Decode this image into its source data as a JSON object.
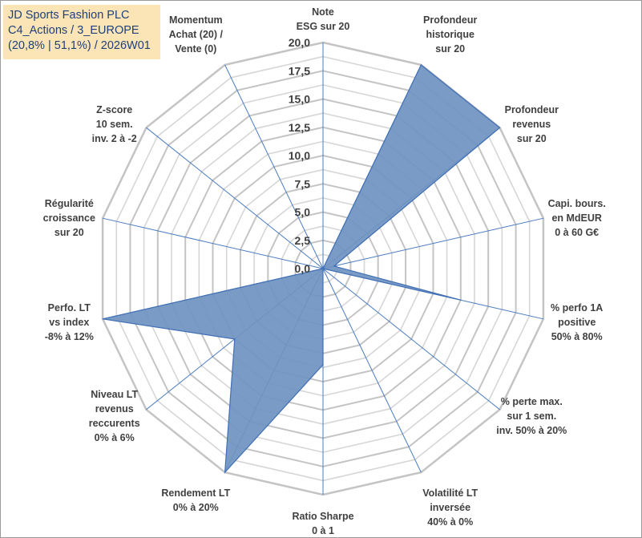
{
  "title_box": {
    "line1": "JD Sports Fashion PLC",
    "line2": "C4_Actions / 3_EUROPE",
    "line3": "(20,8% | 51,1%) / 2026W01"
  },
  "chart_data": {
    "type": "radar",
    "title": "JD Sports Fashion PLC",
    "rlim": [
      0,
      20
    ],
    "tick_values": [
      0,
      2.5,
      5,
      7.5,
      10,
      12.5,
      15,
      17.5,
      20
    ],
    "tick_labels": [
      "0,0",
      "2,5",
      "5,0",
      "7,5",
      "10,0",
      "12,5",
      "15,0",
      "17,5",
      "20,0"
    ],
    "grid": true,
    "series_color": "#6f93c0",
    "axes": [
      {
        "label": [
          "Note",
          "ESG sur 20"
        ],
        "value": 0
      },
      {
        "label": [
          "Profondeur",
          "historique",
          "sur 20"
        ],
        "value": 20
      },
      {
        "label": [
          "Profondeur",
          "revenus",
          "sur 20"
        ],
        "value": 20
      },
      {
        "label": [
          "Capi. bours.",
          "en MdEUR",
          "0 à 60 G€"
        ],
        "value": 1
      },
      {
        "label": [
          "% perfo 1A",
          "positive",
          "50% à 80%"
        ],
        "value": 12.5
      },
      {
        "label": [
          "% perte max.",
          "sur 1 sem.",
          "inv. 50% à 20%"
        ],
        "value": 0
      },
      {
        "label": [
          "Volatilité LT",
          "inversée",
          "40% à 0%"
        ],
        "value": 0
      },
      {
        "label": [
          "Ratio Sharpe",
          "0 à 1"
        ],
        "value": 8.5
      },
      {
        "label": [
          "Rendement LT",
          "0% à 20%"
        ],
        "value": 20
      },
      {
        "label": [
          "Niveau LT",
          "revenus",
          "reccurents",
          "0% à 6%"
        ],
        "value": 10
      },
      {
        "label": [
          "Perfo. LT",
          "vs index",
          "-8% à 12%"
        ],
        "value": 20
      },
      {
        "label": [
          "Régularité",
          "croissance",
          "sur 20"
        ],
        "value": 0
      },
      {
        "label": [
          "Z-score",
          "10 sem.",
          "inv. 2 à -2"
        ],
        "value": 0
      },
      {
        "label": [
          "Momentum",
          "Achat (20) /",
          "Vente (0)"
        ],
        "value": 0
      }
    ]
  }
}
